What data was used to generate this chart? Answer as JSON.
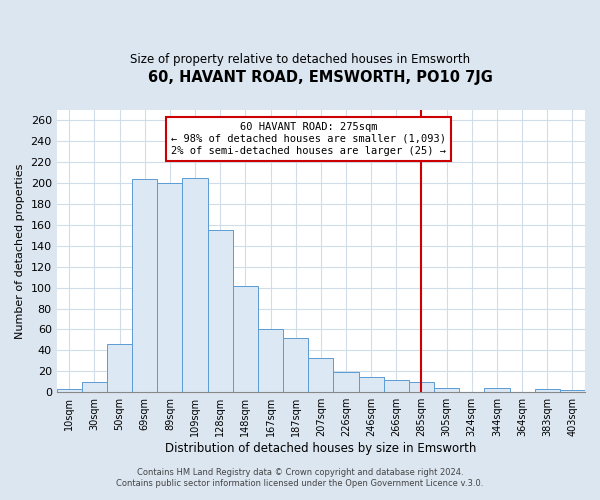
{
  "title": "60, HAVANT ROAD, EMSWORTH, PO10 7JG",
  "subtitle": "Size of property relative to detached houses in Emsworth",
  "xlabel": "Distribution of detached houses by size in Emsworth",
  "ylabel": "Number of detached properties",
  "bar_labels": [
    "10sqm",
    "30sqm",
    "50sqm",
    "69sqm",
    "89sqm",
    "109sqm",
    "128sqm",
    "148sqm",
    "167sqm",
    "187sqm",
    "207sqm",
    "226sqm",
    "246sqm",
    "266sqm",
    "285sqm",
    "305sqm",
    "324sqm",
    "344sqm",
    "364sqm",
    "383sqm",
    "403sqm"
  ],
  "bar_heights": [
    3,
    10,
    46,
    204,
    200,
    205,
    155,
    102,
    60,
    52,
    33,
    19,
    15,
    12,
    10,
    4,
    0,
    4,
    0,
    3,
    2
  ],
  "bar_color": "#dce9f5",
  "bar_edge_color": "#5b9bd5",
  "vline_x_index": 14,
  "vline_color": "#cc0000",
  "annotation_title": "60 HAVANT ROAD: 275sqm",
  "annotation_line1": "← 98% of detached houses are smaller (1,093)",
  "annotation_line2": "2% of semi-detached houses are larger (25) →",
  "annotation_box_color": "#ffffff",
  "annotation_box_edge": "#cc0000",
  "footer_line1": "Contains HM Land Registry data © Crown copyright and database right 2024.",
  "footer_line2": "Contains public sector information licensed under the Open Government Licence v.3.0.",
  "ylim": [
    0,
    270
  ],
  "yticks": [
    0,
    20,
    40,
    60,
    80,
    100,
    120,
    140,
    160,
    180,
    200,
    220,
    240,
    260
  ],
  "fig_bg_color": "#dce6f0",
  "plot_bg_color": "#ffffff",
  "grid_color": "#d0dce8"
}
